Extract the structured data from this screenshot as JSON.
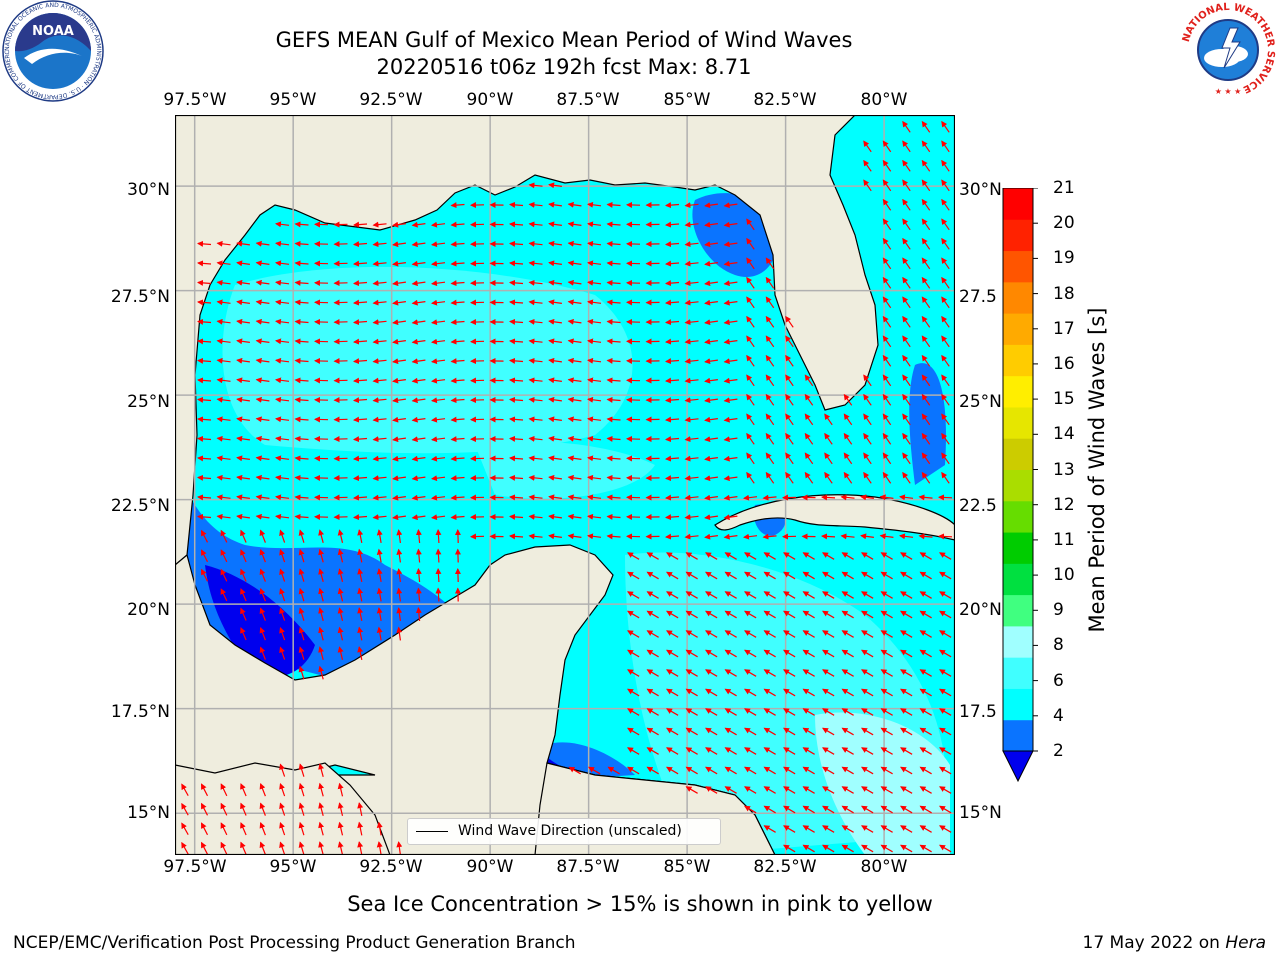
{
  "header": {
    "title_line1": "GEFS MEAN Gulf of Mexico Mean Period of Wind Waves",
    "title_line2": "20220516 t06z 192h fcst   Max: 8.71"
  },
  "axes": {
    "lon_labels": [
      "97.5°W",
      "95°W",
      "92.5°W",
      "90°W",
      "87.5°W",
      "85°W",
      "82.5°W",
      "80°W"
    ],
    "lat_labels_left": [
      "30°N",
      "27.5°N",
      "25°N",
      "22.5°N",
      "20°N",
      "17.5°N",
      "15°N"
    ],
    "lat_labels_right": [
      "30°N",
      "27.5",
      "25°N",
      "22.5",
      "20°N",
      "17.5",
      "15°N"
    ],
    "lon_range": [
      -98,
      -78.2
    ],
    "lat_range": [
      14,
      31.7
    ],
    "grid": true
  },
  "legend": {
    "line_label": "Wind Wave Direction (unscaled)",
    "arrow_color": "#ff0000"
  },
  "colorbar": {
    "label": "Mean Period of Wind Waves [s]",
    "ticks": [
      "21",
      "20",
      "19",
      "18",
      "17",
      "16",
      "15",
      "14",
      "13",
      "12",
      "11",
      "10",
      "9",
      "8",
      "6",
      "4",
      "2"
    ],
    "colors": [
      "#0000ee",
      "#0a74ff",
      "#00ffff",
      "#40ffff",
      "#a0ffff",
      "#40ff80",
      "#00e040",
      "#00cc00",
      "#66dd00",
      "#aadd00",
      "#cccc00",
      "#e6e600",
      "#ffee00",
      "#ffcc00",
      "#ffaa00",
      "#ff8800",
      "#ff5500",
      "#ff2200",
      "#ff0000"
    ]
  },
  "map_colors": {
    "land": "#efedde",
    "ocean_2_4": "#0a74ff",
    "ocean_lt2": "#0000ee",
    "ocean_4_6": "#00ffff",
    "ocean_6_8": "#40ffff",
    "ocean_8_9": "#a0ffff",
    "gridline": "#b0b0b0"
  },
  "note": "Sea Ice Concentration > 15% is shown in pink to yellow",
  "footer": {
    "left": "NCEP/EMC/Verification Post Processing Product Generation Branch",
    "right_date": "17 May 2022 on",
    "right_host": "Hera"
  },
  "logos": {
    "noaa": "NOAA",
    "noaa_ring": "NATIONAL OCEANIC AND ATMOSPHERIC ADMINISTRATION · U.S. DEPARTMENT OF COMMERCE",
    "nws_ring": "NATIONAL WEATHER SERVICE"
  }
}
